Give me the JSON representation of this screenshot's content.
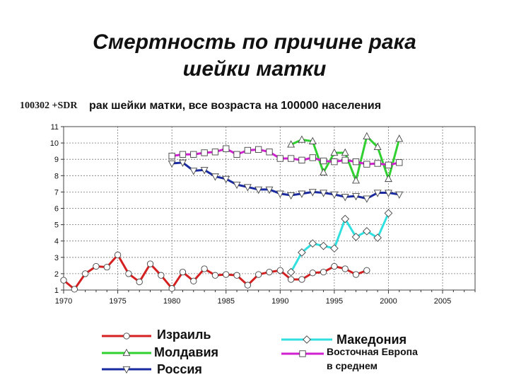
{
  "title_line1": "Смертность по причине рака",
  "title_line2": "шейки матки",
  "source_code": "100302 +SDR",
  "subtitle": "рак шейки матки, все возраста на 100000 населения",
  "chart_data": {
    "type": "line",
    "xlim": [
      1970,
      2008
    ],
    "ylim": [
      1,
      11
    ],
    "x_ticks": [
      1970,
      1975,
      1980,
      1985,
      1990,
      1995,
      2000,
      2005
    ],
    "y_ticks": [
      1,
      2,
      3,
      4,
      5,
      6,
      7,
      8,
      9,
      10,
      11
    ],
    "grid": true,
    "series": [
      {
        "name": "Израиль",
        "color": "#d42020",
        "marker": "circle",
        "x": [
          1970,
          1971,
          1972,
          1973,
          1974,
          1975,
          1976,
          1977,
          1978,
          1979,
          1980,
          1981,
          1982,
          1983,
          1984,
          1985,
          1986,
          1987,
          1988,
          1989,
          1990,
          1991,
          1992,
          1993,
          1994,
          1995,
          1996,
          1997,
          1998
        ],
        "y": [
          1.6,
          1.05,
          2.0,
          2.45,
          2.4,
          3.15,
          2.0,
          1.5,
          2.6,
          1.9,
          1.1,
          2.1,
          1.55,
          2.3,
          1.9,
          1.95,
          1.9,
          1.3,
          1.95,
          2.1,
          2.2,
          1.65,
          1.65,
          2.05,
          2.1,
          2.45,
          2.3,
          1.95,
          2.2
        ]
      },
      {
        "name": "Молдавия",
        "color": "#30d030",
        "marker": "triangle-up",
        "x": [
          1991,
          1992,
          1993,
          1994,
          1995,
          1996,
          1997,
          1998,
          1999,
          2000,
          2001
        ],
        "y": [
          9.9,
          10.2,
          10.1,
          8.2,
          9.4,
          9.4,
          7.7,
          10.4,
          9.75,
          7.8,
          10.25
        ]
      },
      {
        "name": "Россия",
        "color": "#1a2aa0",
        "marker": "triangle-down",
        "x": [
          1980,
          1981,
          1982,
          1983,
          1984,
          1985,
          1986,
          1987,
          1988,
          1989,
          1990,
          1991,
          1992,
          1993,
          1994,
          1995,
          1996,
          1997,
          1998,
          1999,
          2000,
          2001
        ],
        "y": [
          8.75,
          8.8,
          8.3,
          8.35,
          7.95,
          7.8,
          7.45,
          7.3,
          7.15,
          7.15,
          6.9,
          6.8,
          6.9,
          7.0,
          6.95,
          6.85,
          6.7,
          6.75,
          6.6,
          6.95,
          6.95,
          6.85
        ]
      },
      {
        "name": "Македония",
        "color": "#30e0e0",
        "marker": "diamond",
        "x": [
          1991,
          1992,
          1993,
          1994,
          1995,
          1996,
          1997,
          1998,
          1999,
          2000
        ],
        "y": [
          2.1,
          3.3,
          3.85,
          3.7,
          3.55,
          5.35,
          4.25,
          4.6,
          4.2,
          5.7
        ]
      },
      {
        "name": "Восточная Европа в среднем",
        "color": "#d020d0",
        "marker": "square",
        "x": [
          1980,
          1981,
          1982,
          1983,
          1984,
          1985,
          1986,
          1987,
          1988,
          1989,
          1990,
          1991,
          1992,
          1993,
          1994,
          1995,
          1996,
          1997,
          1998,
          1999,
          2000,
          2001
        ],
        "y": [
          9.2,
          9.3,
          9.3,
          9.4,
          9.45,
          9.65,
          9.3,
          9.55,
          9.6,
          9.45,
          9.05,
          9.05,
          8.95,
          9.1,
          8.9,
          8.85,
          8.95,
          8.85,
          8.7,
          8.75,
          8.65,
          8.8
        ]
      }
    ],
    "legend": [
      {
        "label": "Израиль",
        "series": 0
      },
      {
        "label": "Молдавия",
        "series": 1
      },
      {
        "label": "Россия",
        "series": 2
      },
      {
        "label": "Македония",
        "series": 3
      },
      {
        "label_line1": "Восточная Европа",
        "label_line2": "в среднем",
        "series": 4
      }
    ]
  }
}
